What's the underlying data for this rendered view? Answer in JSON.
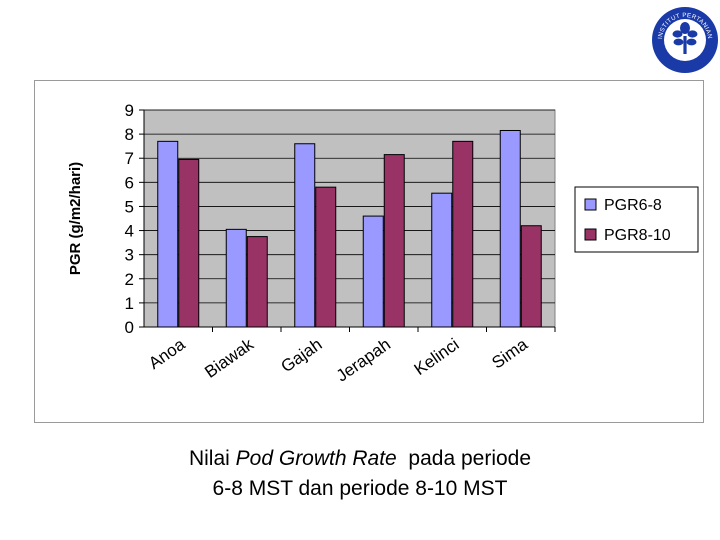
{
  "logo": {
    "icon": "ipb-institutional-seal",
    "top_text": "INSTITUT PERTANIAN",
    "bottom_text": "BOGOR",
    "color": "#1a3aa8"
  },
  "chart_data": {
    "type": "bar",
    "categories": [
      "Anoa",
      "Biawak",
      "Gajah",
      "Jerapah",
      "Kelinci",
      "Sima"
    ],
    "series": [
      {
        "name": "PGR6-8",
        "values": [
          7.7,
          4.05,
          7.6,
          4.6,
          5.55,
          8.15
        ],
        "color": "#9999ff"
      },
      {
        "name": "PGR8-10",
        "values": [
          6.95,
          3.75,
          5.8,
          7.15,
          7.7,
          4.2
        ],
        "color": "#993366"
      }
    ],
    "xlabel": "",
    "ylabel": "PGR (g/m2/hari)",
    "ylim": [
      0,
      9
    ],
    "yticks": [
      "0",
      "1",
      "2",
      "3",
      "4",
      "5",
      "6",
      "7",
      "8",
      "9"
    ],
    "grid": true,
    "plot_background": "#c0c0c0",
    "legend_position": "right"
  },
  "caption": {
    "line1_before": "Nilai ",
    "line1_italic": "Pod Growth Rate",
    "line1_after": "  pada periode",
    "line2": "6-8 MST dan periode 8-10 MST"
  }
}
